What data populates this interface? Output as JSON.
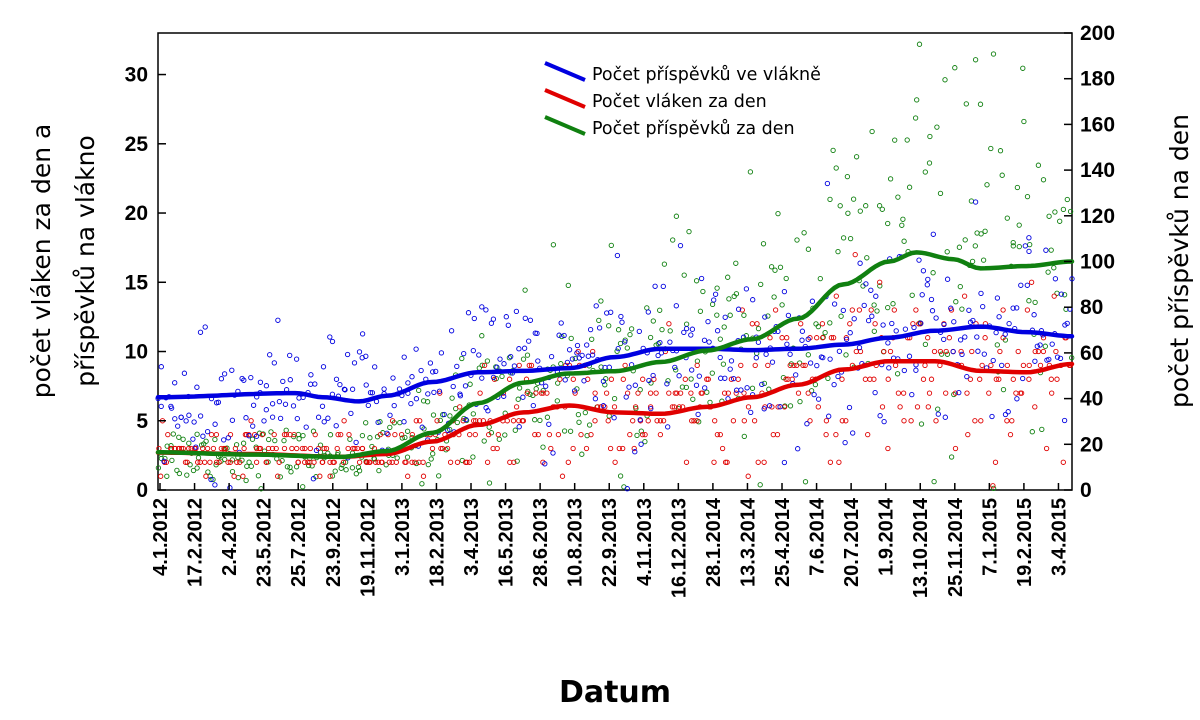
{
  "chart_data": {
    "type": "scatter",
    "title": "",
    "xlabel": "Datum",
    "ylabel_left": [
      "počet vláken za den a",
      "příspěvků na vlákno"
    ],
    "ylabel_right": "počet příspěvků na den",
    "x_range": [
      "2012-01-04",
      "2015-05-10"
    ],
    "ylim_left": [
      0,
      33
    ],
    "ylim_right": [
      0,
      200
    ],
    "yticks_left": [
      0,
      5,
      10,
      15,
      20,
      25,
      30
    ],
    "yticks_right": [
      0,
      20,
      40,
      60,
      80,
      100,
      120,
      140,
      160,
      180,
      200
    ],
    "xticks": [
      "4.1.2012",
      "17.2.2012",
      "2.4.2012",
      "23.5.2012",
      "25.7.2012",
      "23.9.2012",
      "19.11.2012",
      "3.1.2013",
      "18.2.2013",
      "3.4.2013",
      "16.5.2013",
      "28.6.2013",
      "10.8.2013",
      "22.9.2013",
      "4.11.2013",
      "16.12.2013",
      "28.1.2014",
      "13.3.2014",
      "25.4.2014",
      "7.6.2014",
      "20.7.2014",
      "1.9.2014",
      "13.10.2014",
      "25.11.2014",
      "7.1.2015",
      "19.2.2015",
      "3.4.2015"
    ],
    "grid": false,
    "legend_position": "top-center",
    "series": [
      {
        "name": "Počet příspěvků ve vlákně",
        "axis": "left",
        "color": "#0000e0",
        "trend": [
          [
            0,
            6.7
          ],
          [
            0.15,
            7.0
          ],
          [
            0.18,
            6.7
          ],
          [
            0.22,
            6.4
          ],
          [
            0.25,
            6.8
          ],
          [
            0.3,
            7.8
          ],
          [
            0.35,
            8.5
          ],
          [
            0.4,
            8.6
          ],
          [
            0.45,
            8.8
          ],
          [
            0.5,
            9.6
          ],
          [
            0.55,
            10.2
          ],
          [
            0.6,
            10.2
          ],
          [
            0.65,
            10.1
          ],
          [
            0.7,
            10.2
          ],
          [
            0.75,
            10.5
          ],
          [
            0.8,
            11.0
          ],
          [
            0.85,
            11.5
          ],
          [
            0.9,
            11.8
          ],
          [
            0.95,
            11.4
          ],
          [
            1,
            11.1
          ]
        ]
      },
      {
        "name": "Počet vláken za den",
        "axis": "left",
        "color": "#e00000",
        "trend": [
          [
            0,
            2.7
          ],
          [
            0.1,
            2.6
          ],
          [
            0.2,
            2.4
          ],
          [
            0.25,
            2.6
          ],
          [
            0.3,
            3.5
          ],
          [
            0.35,
            4.7
          ],
          [
            0.4,
            5.6
          ],
          [
            0.45,
            6.1
          ],
          [
            0.5,
            5.6
          ],
          [
            0.55,
            5.5
          ],
          [
            0.6,
            6.0
          ],
          [
            0.65,
            6.7
          ],
          [
            0.7,
            7.6
          ],
          [
            0.75,
            8.7
          ],
          [
            0.8,
            9.3
          ],
          [
            0.85,
            9.3
          ],
          [
            0.9,
            8.6
          ],
          [
            0.95,
            8.5
          ],
          [
            1,
            9.1
          ]
        ]
      },
      {
        "name": "Počet příspěvků za den",
        "axis": "right",
        "color": "#108010",
        "trend": [
          [
            0,
            16.5
          ],
          [
            0.1,
            15.5
          ],
          [
            0.2,
            14.5
          ],
          [
            0.25,
            17
          ],
          [
            0.3,
            25
          ],
          [
            0.35,
            38
          ],
          [
            0.4,
            47
          ],
          [
            0.45,
            51
          ],
          [
            0.5,
            52
          ],
          [
            0.55,
            56
          ],
          [
            0.6,
            61
          ],
          [
            0.65,
            66
          ],
          [
            0.7,
            75
          ],
          [
            0.75,
            90
          ],
          [
            0.8,
            100
          ],
          [
            0.83,
            104
          ],
          [
            0.87,
            101
          ],
          [
            0.9,
            97
          ],
          [
            0.95,
            98
          ],
          [
            1,
            100
          ]
        ]
      }
    ]
  }
}
